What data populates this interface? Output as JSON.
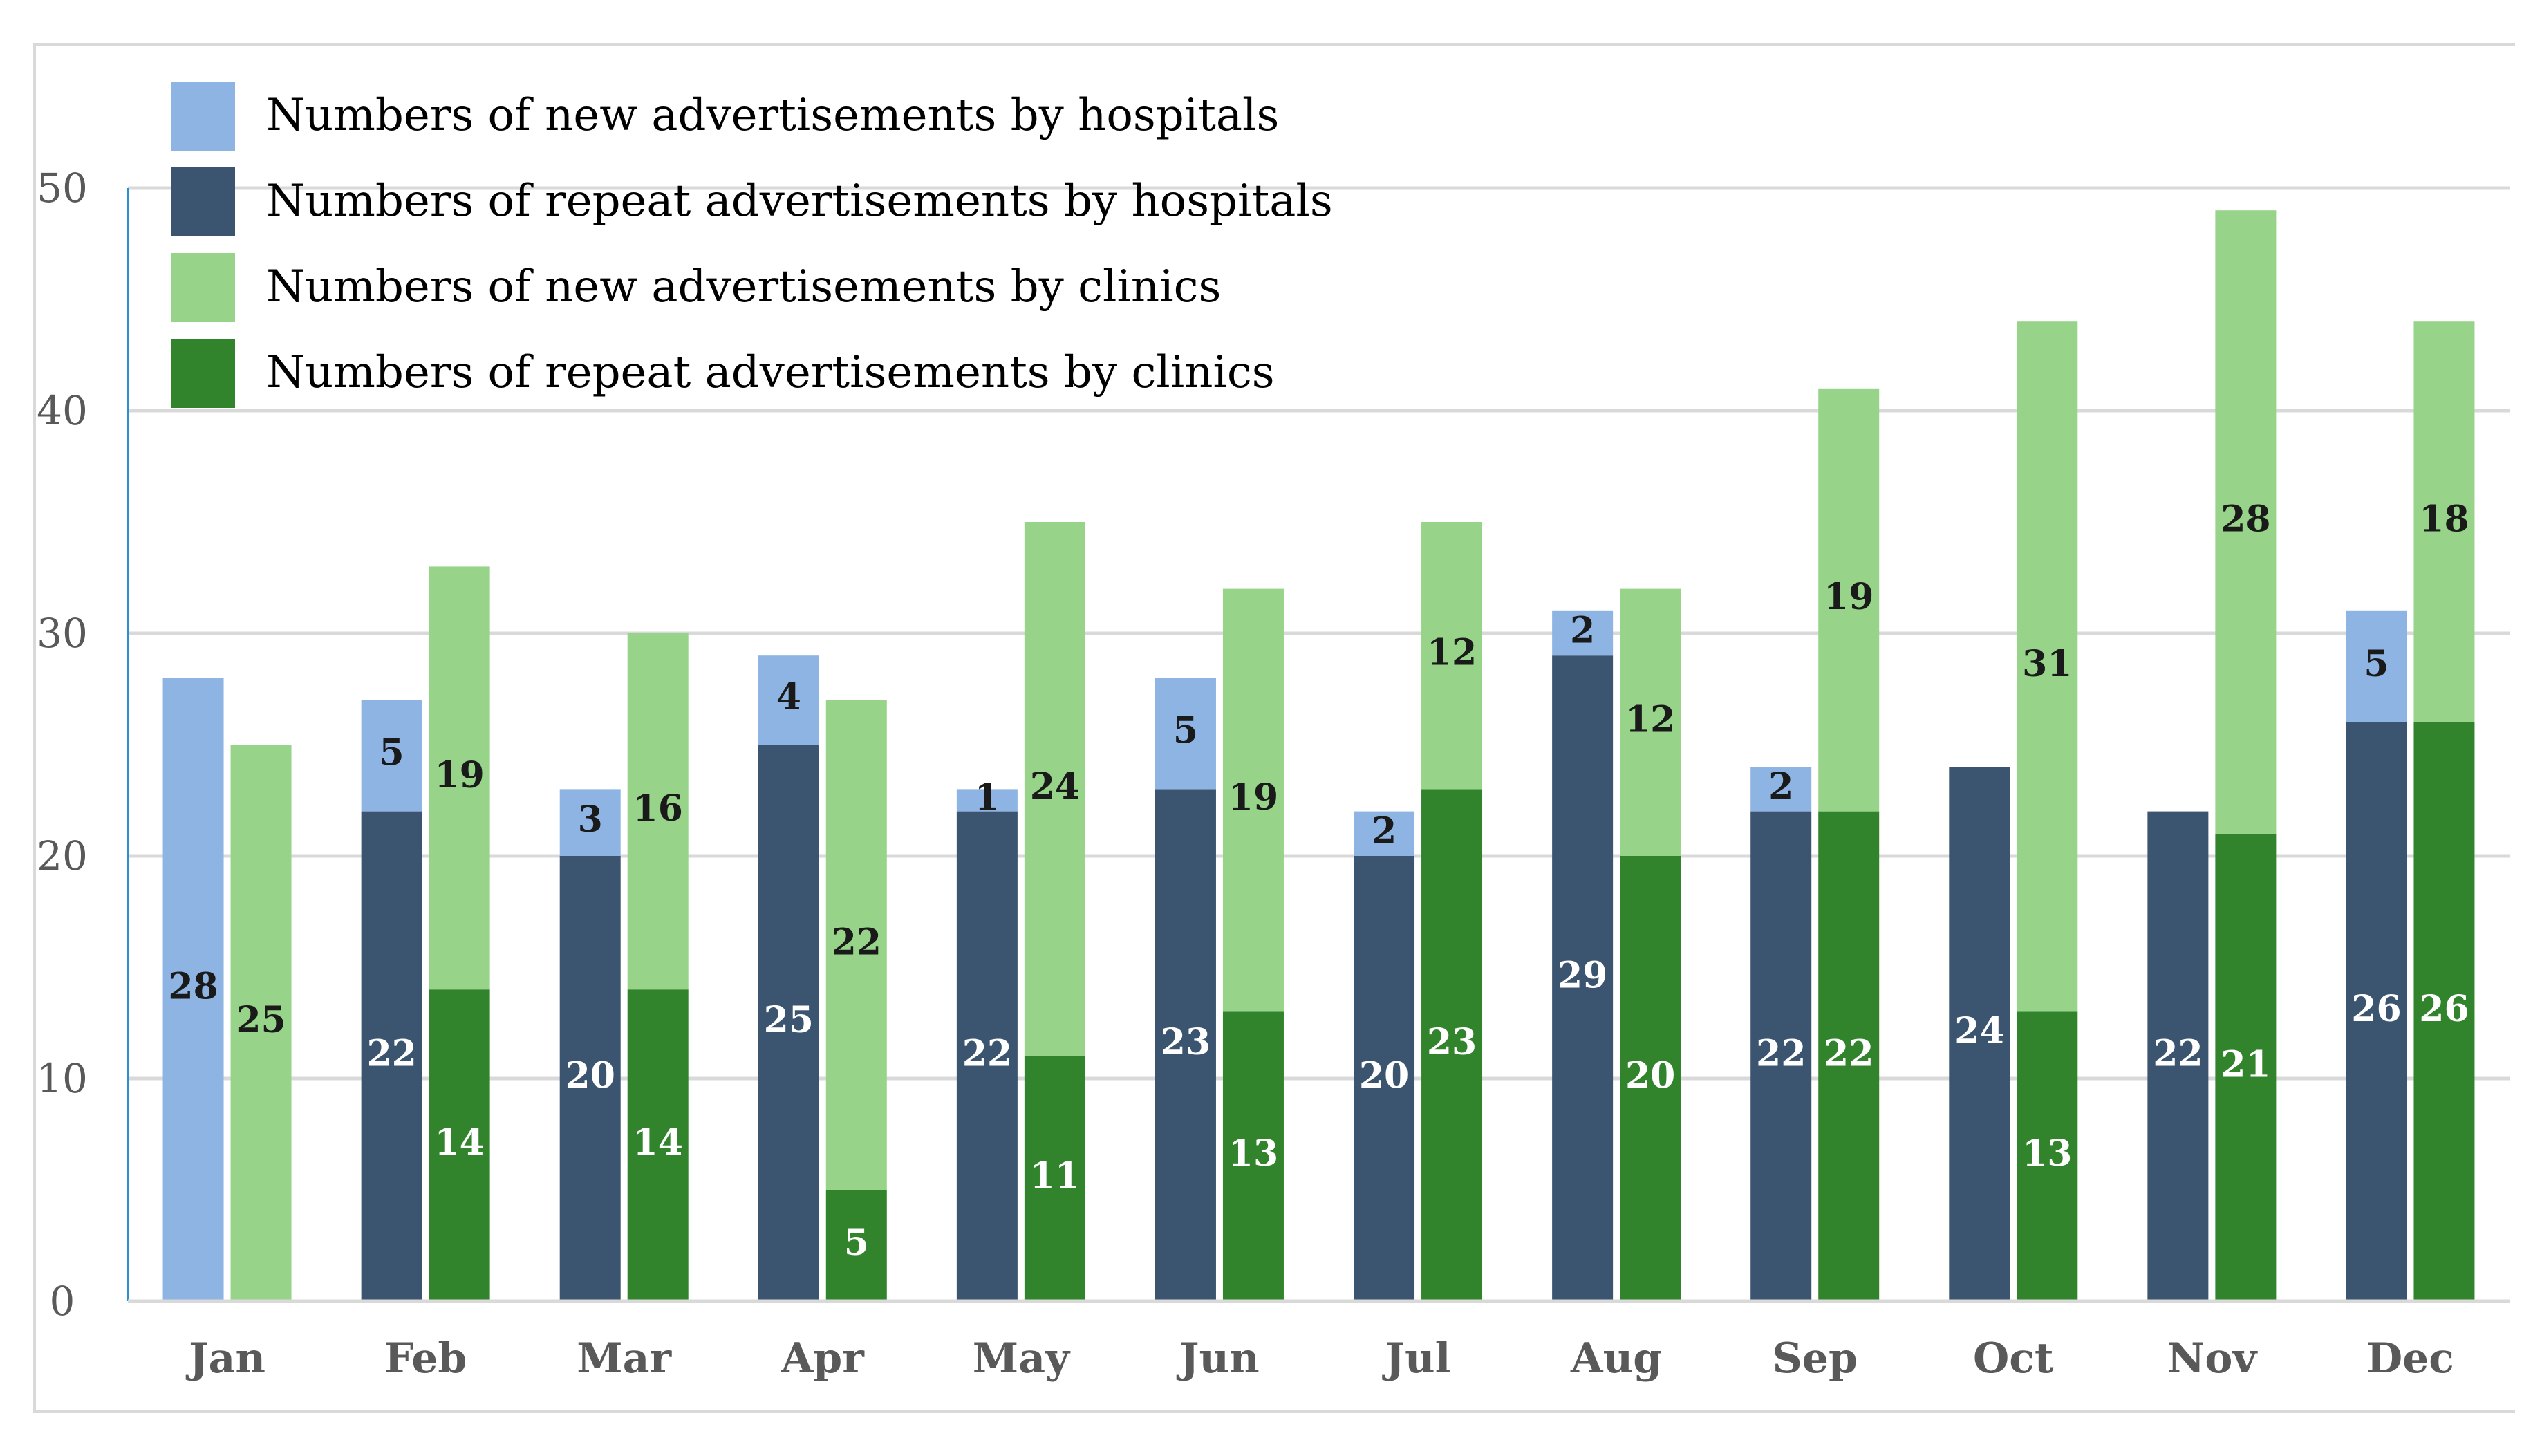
{
  "chart_data": {
    "type": "bar",
    "stacked": true,
    "grouped": true,
    "categories": [
      "Jan",
      "Feb",
      "Mar",
      "Apr",
      "May",
      "Jun",
      "Jul",
      "Aug",
      "Sep",
      "Oct",
      "Nov",
      "Dec"
    ],
    "ylim": [
      0,
      50
    ],
    "yticks": [
      0,
      10,
      20,
      30,
      40,
      50
    ],
    "legend_position": "top-left",
    "grid": true,
    "series": [
      {
        "name": "Numbers of new advertisements by hospitals",
        "group": "hospitals",
        "color": "#8eb4e3",
        "values": [
          28,
          5,
          3,
          4,
          1,
          5,
          2,
          2,
          2,
          0,
          0,
          5
        ]
      },
      {
        "name": "Numbers of repeat advertisements by hospitals",
        "group": "hospitals",
        "color": "#3b5470",
        "values": [
          0,
          22,
          20,
          25,
          22,
          23,
          20,
          29,
          22,
          24,
          22,
          26
        ]
      },
      {
        "name": "Numbers of new advertisements by clinics",
        "group": "clinics",
        "color": "#97d48a",
        "values": [
          25,
          19,
          16,
          22,
          24,
          19,
          12,
          12,
          19,
          31,
          28,
          18
        ]
      },
      {
        "name": "Numbers of repeat advertisements by clinics",
        "group": "clinics",
        "color": "#31842c",
        "values": [
          0,
          14,
          14,
          5,
          11,
          13,
          23,
          20,
          22,
          13,
          21,
          26
        ]
      }
    ]
  }
}
